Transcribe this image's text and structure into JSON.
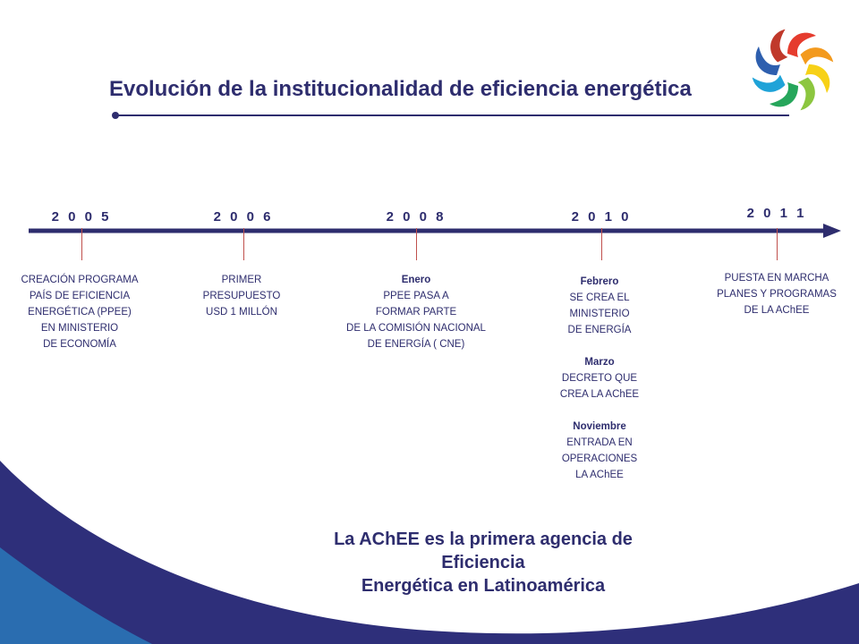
{
  "slide": {
    "title": "Evolución de la institucionalidad de eficiencia energética",
    "closing_statement": [
      "La AChEE es la primera agencia de Eficiencia",
      "Energética en Latinoamérica"
    ]
  },
  "timeline": [
    {
      "year": "2005",
      "blocks": [
        {
          "lines": [
            "CREACIÓN  PROGRAMA",
            "PAÍS DE EFICIENCIA",
            "ENERGÉTICA  (PPEE)",
            "EN MINISTERIO",
            "DE ECONOMÍA"
          ]
        }
      ]
    },
    {
      "year": "2006",
      "blocks": [
        {
          "lines": [
            "PRIMER",
            "PRESUPUESTO",
            "USD 1 MILLÓN"
          ]
        }
      ]
    },
    {
      "year": "2008",
      "blocks": [
        {
          "month": "Enero",
          "lines": [
            "PPEE PASA A",
            "FORMAR PARTE",
            "DE LA COMISIÓN  NACIONAL",
            "DE ENERGÍA  ( CNE)"
          ]
        }
      ]
    },
    {
      "year": "2010",
      "blocks": [
        {
          "month": "Febrero",
          "lines": [
            "SE CREA EL",
            "MINISTERIO",
            "DE ENERGÍA"
          ]
        },
        {
          "month": "Marzo",
          "lines": [
            "DECRETO  QUE",
            "CREA  LA AChEE"
          ]
        },
        {
          "month": "Noviembre",
          "lines": [
            "ENTRADA EN",
            "OPERACIONES",
            "LA AChEE"
          ]
        }
      ]
    },
    {
      "year": "2011",
      "blocks": [
        {
          "lines": [
            "PUESTA EN MARCHA",
            "PLANES Y PROGRAMAS",
            "DE LA AChEE"
          ]
        }
      ]
    }
  ],
  "colors": {
    "navy": "#2e2d6e",
    "tick": "#c0504d",
    "swoosh_dark": "#2e2f7a",
    "swoosh_light": "#2a6db0"
  }
}
